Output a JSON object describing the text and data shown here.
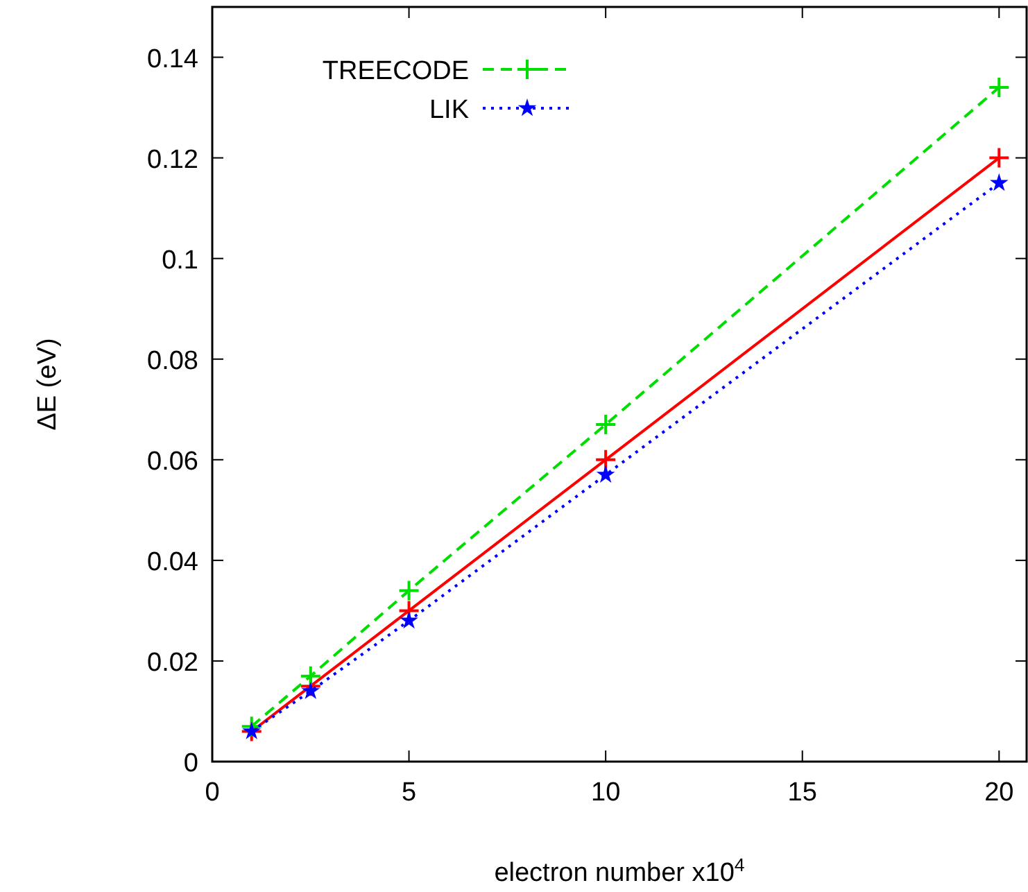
{
  "chart_data": {
    "type": "line",
    "xlabel": "electron number x10$^{4}$",
    "ylabel": "ΔE (eV)",
    "x": [
      1,
      2.5,
      5,
      10,
      20
    ],
    "xlim": [
      0,
      20.7
    ],
    "xticks": [
      0,
      5,
      10,
      15,
      20
    ],
    "ylim": [
      0,
      0.15
    ],
    "yticks": [
      0,
      0.02,
      0.04,
      0.06,
      0.08,
      0.1,
      0.12,
      0.14
    ],
    "legend": "top left",
    "grid": false,
    "series": [
      {
        "color": "#ff0000",
        "values": [
          0.006,
          0.015,
          0.03,
          0.06,
          0.12
        ],
        "marker": "cross",
        "line_style": "solid"
      },
      {
        "name": "TREECODE",
        "color": "#00dd00",
        "values": [
          0.007,
          0.017,
          0.034,
          0.067,
          0.134
        ],
        "marker": "cross",
        "line_style": "dashed"
      },
      {
        "name": "LIK",
        "color": "#0000ff",
        "values": [
          0.006,
          0.014,
          0.028,
          0.057,
          0.115
        ],
        "marker": "star",
        "line_style": "dotted"
      }
    ]
  }
}
